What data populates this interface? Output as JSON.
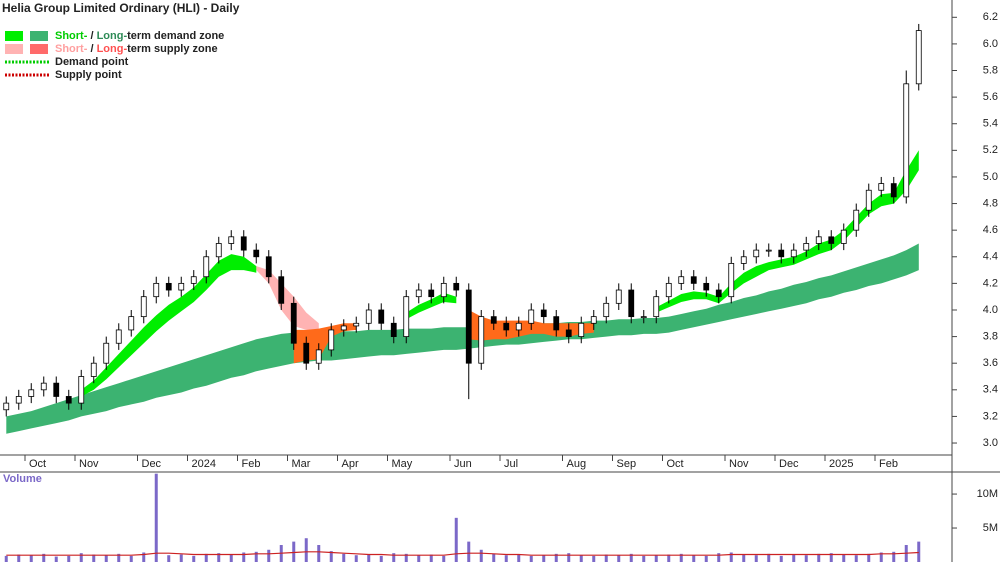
{
  "chart_data": {
    "type": "candlestick",
    "title": "Helia Group Limited Ordinary (HLI) - Daily",
    "categories": [
      null,
      null,
      "Oct",
      null,
      null,
      null,
      "Nov",
      null,
      null,
      null,
      null,
      "Dec",
      null,
      null,
      null,
      "2024",
      null,
      null,
      null,
      "Feb",
      null,
      null,
      null,
      "Mar",
      null,
      null,
      null,
      "Apr",
      null,
      null,
      null,
      "May",
      null,
      null,
      null,
      null,
      "Jun",
      null,
      null,
      null,
      "Jul",
      null,
      null,
      null,
      null,
      "Aug",
      null,
      null,
      null,
      "Sep",
      null,
      null,
      null,
      "Oct",
      null,
      null,
      null,
      null,
      "Nov",
      null,
      null,
      null,
      "Dec",
      null,
      null,
      null,
      "2025",
      null,
      null,
      null,
      "Feb",
      null,
      null,
      null
    ],
    "open": [
      3.25,
      3.3,
      3.35,
      3.4,
      3.45,
      3.35,
      3.3,
      3.5,
      3.6,
      3.75,
      3.85,
      3.95,
      4.1,
      4.2,
      4.15,
      4.2,
      4.25,
      4.4,
      4.5,
      4.55,
      4.45,
      4.4,
      4.25,
      4.05,
      3.75,
      3.6,
      3.7,
      3.85,
      3.88,
      3.9,
      4.0,
      3.9,
      3.8,
      4.1,
      4.15,
      4.1,
      4.2,
      4.15,
      3.6,
      3.95,
      3.9,
      3.85,
      3.9,
      4.0,
      3.95,
      3.85,
      3.8,
      3.9,
      3.95,
      4.05,
      4.15,
      3.95,
      3.95,
      4.1,
      4.2,
      4.25,
      4.2,
      4.15,
      4.1,
      4.35,
      4.4,
      4.45,
      4.45,
      4.4,
      4.45,
      4.5,
      4.55,
      4.5,
      4.6,
      4.75,
      4.9,
      4.95,
      4.85,
      5.7
    ],
    "high": [
      3.35,
      3.4,
      3.45,
      3.5,
      3.5,
      3.4,
      3.55,
      3.65,
      3.8,
      3.9,
      4.0,
      4.15,
      4.25,
      4.25,
      4.25,
      4.3,
      4.45,
      4.55,
      4.6,
      4.6,
      4.5,
      4.45,
      4.3,
      4.1,
      3.8,
      3.75,
      3.9,
      3.93,
      3.95,
      4.05,
      4.05,
      3.95,
      4.15,
      4.2,
      4.2,
      4.25,
      4.25,
      4.2,
      4.0,
      4.0,
      3.95,
      3.95,
      4.05,
      4.05,
      4.0,
      3.9,
      3.95,
      4.0,
      4.1,
      4.2,
      4.2,
      4.0,
      4.15,
      4.25,
      4.3,
      4.3,
      4.25,
      4.2,
      4.4,
      4.45,
      4.5,
      4.5,
      4.5,
      4.5,
      4.55,
      4.6,
      4.6,
      4.65,
      4.8,
      4.95,
      5.0,
      5.0,
      5.8,
      6.15
    ],
    "low": [
      3.2,
      3.25,
      3.3,
      3.35,
      3.3,
      3.25,
      3.25,
      3.45,
      3.55,
      3.7,
      3.8,
      3.9,
      4.05,
      4.1,
      4.1,
      4.15,
      4.2,
      4.35,
      4.45,
      4.4,
      4.35,
      4.2,
      4.0,
      3.7,
      3.55,
      3.55,
      3.65,
      3.8,
      3.83,
      3.85,
      3.85,
      3.75,
      3.75,
      4.05,
      4.05,
      4.05,
      4.1,
      3.33,
      3.55,
      3.85,
      3.8,
      3.8,
      3.85,
      3.9,
      3.8,
      3.75,
      3.75,
      3.85,
      3.9,
      4.0,
      3.9,
      3.9,
      3.9,
      4.05,
      4.15,
      4.15,
      4.1,
      4.05,
      4.05,
      4.3,
      4.35,
      4.4,
      4.35,
      4.35,
      4.4,
      4.45,
      4.45,
      4.45,
      4.55,
      4.7,
      4.85,
      4.8,
      4.8,
      5.65
    ],
    "close": [
      3.3,
      3.35,
      3.4,
      3.45,
      3.35,
      3.3,
      3.5,
      3.6,
      3.75,
      3.85,
      3.95,
      4.1,
      4.2,
      4.15,
      4.2,
      4.25,
      4.4,
      4.5,
      4.55,
      4.45,
      4.4,
      4.25,
      4.05,
      3.75,
      3.6,
      3.7,
      3.85,
      3.88,
      3.9,
      4.0,
      3.9,
      3.8,
      4.1,
      4.15,
      4.1,
      4.2,
      4.15,
      3.6,
      3.95,
      3.9,
      3.85,
      3.9,
      4.0,
      3.95,
      3.85,
      3.8,
      3.9,
      3.95,
      4.05,
      4.15,
      3.95,
      3.95,
      4.1,
      4.2,
      4.25,
      4.2,
      4.15,
      4.1,
      4.35,
      4.4,
      4.45,
      4.45,
      4.4,
      4.45,
      4.5,
      4.55,
      4.5,
      4.6,
      4.75,
      4.9,
      4.95,
      4.85,
      5.7,
      6.1
    ],
    "ylim": [
      2.91,
      6.33
    ],
    "yticks": [
      {
        "value": 3,
        "label": "3.0"
      },
      3.2,
      3.4,
      3.6,
      3.8,
      {
        "value": 4,
        "label": "4.0"
      },
      4.2,
      4.4,
      4.6,
      4.8,
      {
        "value": 5,
        "label": "5.0"
      },
      5.2,
      5.4,
      5.6,
      5.8,
      {
        "value": 6,
        "label": "6.0"
      },
      6.2
    ],
    "zones": [
      {
        "color": "#3cb371",
        "lower": [
          3.07,
          3.09,
          3.11,
          3.13,
          3.15,
          3.17,
          3.2,
          3.22,
          3.24,
          3.27,
          3.29,
          3.31,
          3.34,
          3.36,
          3.38,
          3.41,
          3.43,
          3.46,
          3.49,
          3.51,
          3.54,
          3.56,
          3.58,
          3.6,
          3.61,
          3.62,
          3.62,
          3.63,
          3.64,
          3.65,
          3.66,
          3.66,
          3.67,
          3.68,
          3.69,
          3.7,
          3.7,
          3.71,
          3.72,
          3.73,
          3.74,
          3.74,
          3.75,
          3.76,
          3.77,
          3.78,
          3.78,
          3.79,
          3.8,
          3.81,
          3.81,
          3.82,
          3.82,
          3.83,
          3.85,
          3.87,
          3.89,
          3.91,
          3.93,
          3.95,
          3.97,
          3.99,
          4.01,
          4.03,
          4.05,
          4.08,
          4.1,
          4.13,
          4.15,
          4.18,
          4.2,
          4.23,
          4.26,
          4.3
        ],
        "upper": [
          3.2,
          3.22,
          3.24,
          3.27,
          3.3,
          3.33,
          3.36,
          3.39,
          3.42,
          3.45,
          3.48,
          3.51,
          3.54,
          3.57,
          3.6,
          3.63,
          3.66,
          3.69,
          3.72,
          3.75,
          3.78,
          3.8,
          3.82,
          3.83,
          3.83,
          3.83,
          3.84,
          3.84,
          3.84,
          3.85,
          3.85,
          3.85,
          3.86,
          3.86,
          3.86,
          3.87,
          3.87,
          3.87,
          3.88,
          3.88,
          3.89,
          3.89,
          3.89,
          3.9,
          3.9,
          3.91,
          3.91,
          3.92,
          3.92,
          3.93,
          3.93,
          3.94,
          3.94,
          3.95,
          3.97,
          3.99,
          4.01,
          4.04,
          4.06,
          4.09,
          4.11,
          4.14,
          4.16,
          4.19,
          4.21,
          4.24,
          4.26,
          4.29,
          4.32,
          4.35,
          4.38,
          4.41,
          4.45,
          4.5
        ]
      },
      {
        "color": "#ffb3b3",
        "lower": [
          null,
          null,
          null,
          null,
          null,
          null,
          null,
          null,
          null,
          null,
          null,
          null,
          null,
          null,
          null,
          null,
          null,
          null,
          null,
          null,
          4.3,
          4.2,
          4.0,
          3.88,
          3.85,
          3.84,
          null,
          null,
          null,
          null,
          null,
          null,
          null,
          null,
          null,
          null,
          null,
          null,
          null,
          null,
          null,
          null,
          null,
          null,
          null,
          null,
          null,
          null,
          null,
          null,
          null,
          null,
          null,
          null,
          null,
          null,
          null,
          null,
          null,
          null,
          null,
          null,
          null,
          null,
          null,
          null,
          null,
          null,
          null,
          null,
          null,
          null,
          null,
          null
        ],
        "upper": [
          null,
          null,
          null,
          null,
          null,
          null,
          null,
          null,
          null,
          null,
          null,
          null,
          null,
          null,
          null,
          null,
          null,
          null,
          null,
          null,
          4.33,
          4.3,
          4.2,
          4.1,
          3.98,
          3.9,
          null,
          null,
          null,
          null,
          null,
          null,
          null,
          null,
          null,
          null,
          null,
          null,
          null,
          null,
          null,
          null,
          null,
          null,
          null,
          null,
          null,
          null,
          null,
          null,
          null,
          null,
          null,
          null,
          null,
          null,
          null,
          null,
          null,
          null,
          null,
          null,
          null,
          null,
          null,
          null,
          null,
          null,
          null,
          null,
          null,
          null,
          null,
          null
        ]
      },
      {
        "color": "#ff6a1a",
        "lower": [
          null,
          null,
          null,
          null,
          null,
          null,
          null,
          null,
          null,
          null,
          null,
          null,
          null,
          null,
          null,
          null,
          null,
          null,
          null,
          null,
          null,
          null,
          null,
          3.6,
          3.62,
          3.63,
          3.8,
          3.84,
          3.85,
          null,
          null,
          null,
          null,
          null,
          null,
          null,
          null,
          3.78,
          3.77,
          3.78,
          3.78,
          3.8,
          3.82,
          3.82,
          3.8,
          3.8,
          3.82,
          3.83,
          null,
          null,
          null,
          null,
          null,
          null,
          null,
          null,
          null,
          null,
          null,
          null,
          null,
          null,
          null,
          null,
          null,
          null,
          null,
          null,
          null,
          null,
          null,
          null,
          null,
          null
        ],
        "upper": [
          null,
          null,
          null,
          null,
          null,
          null,
          null,
          null,
          null,
          null,
          null,
          null,
          null,
          null,
          null,
          null,
          null,
          null,
          null,
          null,
          null,
          null,
          null,
          3.85,
          3.85,
          3.86,
          3.88,
          3.9,
          3.9,
          null,
          null,
          null,
          null,
          null,
          null,
          null,
          null,
          4.0,
          3.95,
          3.92,
          3.92,
          3.92,
          3.92,
          3.9,
          3.9,
          3.9,
          3.9,
          3.9,
          null,
          null,
          null,
          null,
          null,
          null,
          null,
          null,
          null,
          null,
          null,
          null,
          null,
          null,
          null,
          null,
          null,
          null,
          null,
          null,
          null,
          null,
          null,
          null,
          null,
          null
        ]
      },
      {
        "color": "#00ee00",
        "lower": [
          null,
          null,
          null,
          null,
          null,
          null,
          3.35,
          3.4,
          3.48,
          3.57,
          3.66,
          3.75,
          3.84,
          3.92,
          3.99,
          4.06,
          4.15,
          4.25,
          4.3,
          4.3,
          4.28,
          null,
          null,
          null,
          null,
          null,
          null,
          null,
          null,
          null,
          null,
          null,
          3.93,
          3.98,
          4.02,
          4.06,
          4.05,
          null,
          null,
          null,
          null,
          null,
          null,
          null,
          null,
          null,
          null,
          null,
          null,
          null,
          null,
          null,
          3.98,
          4.02,
          4.06,
          4.08,
          4.08,
          4.05,
          4.13,
          4.2,
          4.25,
          4.3,
          4.32,
          4.34,
          4.38,
          4.42,
          4.45,
          4.52,
          4.62,
          4.72,
          4.78,
          4.8,
          4.9,
          5.05
        ],
        "upper": [
          null,
          null,
          null,
          null,
          null,
          null,
          3.4,
          3.47,
          3.57,
          3.67,
          3.77,
          3.87,
          3.96,
          4.04,
          4.1,
          4.17,
          4.27,
          4.37,
          4.42,
          4.4,
          4.33,
          null,
          null,
          null,
          null,
          null,
          null,
          null,
          null,
          null,
          null,
          null,
          3.98,
          4.04,
          4.08,
          4.13,
          4.1,
          null,
          null,
          null,
          null,
          null,
          null,
          null,
          null,
          null,
          null,
          null,
          null,
          null,
          null,
          null,
          4.02,
          4.07,
          4.12,
          4.14,
          4.13,
          4.1,
          4.2,
          4.28,
          4.33,
          4.36,
          4.38,
          4.4,
          4.44,
          4.5,
          4.53,
          4.6,
          4.7,
          4.8,
          4.87,
          4.88,
          5.05,
          5.2
        ]
      }
    ],
    "legend": [
      {
        "parts": [
          "Short-",
          " / ",
          "Long-",
          "term demand zone"
        ],
        "colors": [
          "#00ee00",
          "#3cb371"
        ],
        "text_colors": [
          "#00cc00",
          "#222222",
          "#2e8b57",
          "#222222"
        ]
      },
      {
        "parts": [
          "Short-",
          " / ",
          "Long-",
          "term supply zone"
        ],
        "colors": [
          "#ffb3b3",
          "#ff6a6a"
        ],
        "text_colors": [
          "#ff9f9f",
          "#222222",
          "#ff5050",
          "#222222"
        ]
      },
      {
        "parts": [
          "Demand point"
        ],
        "colors": [
          "#00cc00"
        ],
        "text_colors": [
          "#222222"
        ],
        "dotted": true
      },
      {
        "parts": [
          "Supply point"
        ],
        "colors": [
          "#cc0000"
        ],
        "text_colors": [
          "#222222"
        ],
        "dotted": true
      }
    ],
    "volume": {
      "label": "Volume",
      "color": "#7b68c8",
      "ma_color": "#cc2222",
      "values": [
        900000,
        1100000,
        1000000,
        1200000,
        800000,
        900000,
        1300000,
        1100000,
        1000000,
        1200000,
        900000,
        1400000,
        13000000,
        1000000,
        1100000,
        900000,
        1200000,
        1300000,
        1100000,
        1400000,
        1500000,
        1800000,
        2500000,
        3000000,
        3500000,
        2500000,
        1600000,
        1200000,
        1000000,
        1100000,
        900000,
        1300000,
        1200000,
        1000000,
        1100000,
        900000,
        6500000,
        3000000,
        1800000,
        1200000,
        1000000,
        1100000,
        900000,
        1000000,
        1200000,
        1300000,
        1000000,
        900000,
        1100000,
        1000000,
        1200000,
        900000,
        1000000,
        1100000,
        1200000,
        1000000,
        900000,
        1300000,
        1400000,
        1100000,
        1000000,
        1200000,
        900000,
        1100000,
        1000000,
        1200000,
        1300000,
        1100000,
        1000000,
        1200000,
        1400000,
        1500000,
        2500000,
        3000000
      ],
      "ma": [
        1000000,
        1000000,
        1000000,
        1000000,
        1000000,
        1000000,
        1000000,
        1000000,
        1000000,
        1000000,
        1000000,
        1100000,
        1300000,
        1300000,
        1200000,
        1100000,
        1100000,
        1100000,
        1100000,
        1100000,
        1200000,
        1200000,
        1300000,
        1400000,
        1500000,
        1500000,
        1400000,
        1300000,
        1200000,
        1100000,
        1100000,
        1000000,
        1000000,
        1000000,
        1000000,
        1000000,
        1200000,
        1300000,
        1300000,
        1200000,
        1100000,
        1100000,
        1000000,
        1000000,
        1000000,
        1000000,
        1000000,
        1000000,
        1000000,
        1000000,
        1000000,
        1000000,
        1000000,
        1000000,
        1000000,
        1000000,
        1000000,
        1000000,
        1100000,
        1100000,
        1100000,
        1100000,
        1100000,
        1100000,
        1100000,
        1100000,
        1100000,
        1100000,
        1100000,
        1100000,
        1200000,
        1200000,
        1300000,
        1400000
      ],
      "ylim": [
        0,
        13100000
      ],
      "yticks": [
        {
          "value": 5000000,
          "label": "5M"
        },
        {
          "value": 10000000,
          "label": "10M"
        }
      ]
    }
  }
}
